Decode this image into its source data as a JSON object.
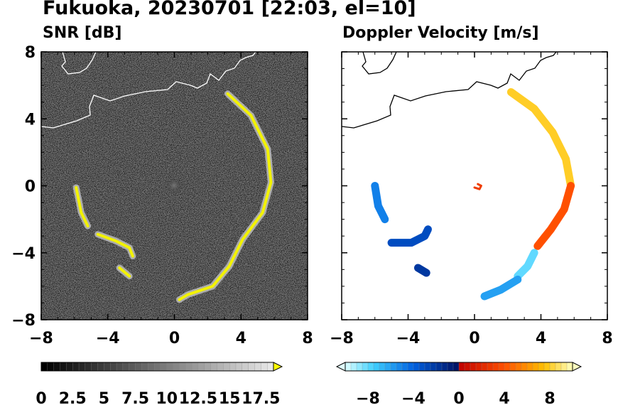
{
  "title": "Fukuoka, 20230701 [22:03, el=10]",
  "chart_data": [
    {
      "type": "heatmap",
      "title": "SNR [dB]",
      "xlim": [
        -8,
        8
      ],
      "ylim": [
        -8,
        8
      ],
      "x_ticks": [
        "−8",
        "−4",
        "0",
        "4",
        "8"
      ],
      "y_ticks": [
        "8",
        "4",
        "0",
        "−4",
        "−8"
      ],
      "colorbar": {
        "range": [
          0,
          18.5
        ],
        "ticks": [
          "0",
          "2.5",
          "5",
          "7.5",
          "10",
          "12.5",
          "15",
          "17.5"
        ],
        "colors": [
          "#000000",
          "#ffff00"
        ]
      },
      "echo_arcs": [
        {
          "name": "east coast",
          "points": [
            [
              3.2,
              5.5
            ],
            [
              4.6,
              4.2
            ],
            [
              5.6,
              2.2
            ],
            [
              5.8,
              0.2
            ],
            [
              5.3,
              -1.6
            ],
            [
              4.1,
              -3.2
            ],
            [
              3.3,
              -4.8
            ],
            [
              2.3,
              -6.0
            ],
            [
              0.8,
              -6.5
            ],
            [
              0.3,
              -6.8
            ]
          ]
        },
        {
          "name": "west coast",
          "points": [
            [
              -5.9,
              -0.1
            ],
            [
              -5.6,
              -1.6
            ],
            [
              -5.2,
              -2.4
            ]
          ]
        },
        {
          "name": "southwest",
          "points": [
            [
              -4.6,
              -2.9
            ],
            [
              -3.5,
              -3.3
            ],
            [
              -2.7,
              -3.7
            ],
            [
              -2.5,
              -4.2
            ]
          ]
        },
        {
          "name": "south",
          "points": [
            [
              -3.3,
              -4.9
            ],
            [
              -2.7,
              -5.4
            ]
          ]
        }
      ],
      "coastline_color": "#ffffff"
    },
    {
      "type": "heatmap",
      "title": "Doppler Velocity [m/s]",
      "xlim": [
        -8,
        8
      ],
      "ylim": [
        -8,
        8
      ],
      "x_ticks": [
        "−8",
        "−4",
        "0",
        "4",
        "8"
      ],
      "y_ticks": [
        "8",
        "4",
        "0",
        "−4",
        "−8"
      ],
      "colorbar": {
        "range": [
          -10,
          10
        ],
        "ticks": [
          "−8",
          "−4",
          "0",
          "4",
          "8"
        ],
        "colors": [
          "#e0ffff",
          "#00b8f0",
          "#0020c0",
          "#001060",
          "#c00000",
          "#ff4000",
          "#ffb000",
          "#ffffc0"
        ]
      },
      "echo_arcs": [
        {
          "name": "east coast upper",
          "v": 8,
          "points": [
            [
              2.2,
              5.6
            ],
            [
              3.6,
              4.6
            ],
            [
              4.7,
              3.2
            ],
            [
              5.5,
              1.6
            ],
            [
              5.8,
              0.0
            ]
          ]
        },
        {
          "name": "east coast middle",
          "v": 4,
          "points": [
            [
              5.8,
              0.0
            ],
            [
              5.4,
              -1.4
            ],
            [
              4.6,
              -2.6
            ],
            [
              3.8,
              -3.6
            ]
          ]
        },
        {
          "name": "east coast lower",
          "v": -8,
          "points": [
            [
              3.6,
              -4.0
            ],
            [
              3.2,
              -4.8
            ],
            [
              2.6,
              -5.4
            ]
          ]
        },
        {
          "name": "south",
          "v": -6,
          "points": [
            [
              2.6,
              -5.6
            ],
            [
              1.6,
              -6.2
            ],
            [
              0.6,
              -6.6
            ]
          ]
        },
        {
          "name": "west coast",
          "v": -5,
          "points": [
            [
              -6.0,
              0.0
            ],
            [
              -5.8,
              -1.2
            ],
            [
              -5.4,
              -2.0
            ]
          ]
        },
        {
          "name": "southwest",
          "v": -3,
          "points": [
            [
              -5.0,
              -3.4
            ],
            [
              -3.8,
              -3.4
            ],
            [
              -3.0,
              -3.0
            ],
            [
              -2.8,
              -2.6
            ]
          ]
        },
        {
          "name": "south-west small",
          "v": -2,
          "points": [
            [
              -3.4,
              -4.9
            ],
            [
              -2.9,
              -5.2
            ]
          ]
        },
        {
          "name": "center ring",
          "v": 3,
          "points": [
            [
              0.2,
              0.1
            ],
            [
              0.4,
              0.0
            ],
            [
              0.3,
              -0.2
            ],
            [
              0.0,
              -0.1
            ]
          ]
        }
      ],
      "coastline_color": "#000000"
    }
  ]
}
